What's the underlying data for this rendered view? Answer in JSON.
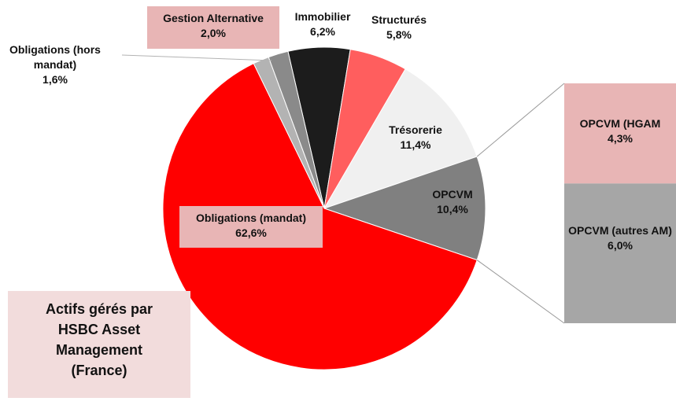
{
  "chart_data": {
    "type": "pie",
    "title": "Actifs gérés par HSBC Asset Management (France)",
    "categories": [
      "Immobilier",
      "Structurés",
      "Trésorerie",
      "OPCVM",
      "Obligations (mandat)",
      "Obligations (hors mandat)",
      "Gestion Alternative"
    ],
    "values": [
      6.2,
      5.8,
      11.4,
      10.4,
      62.6,
      1.6,
      2.0
    ],
    "value_labels": [
      "6,2%",
      "5,8%",
      "11,4%",
      "10,4%",
      "62,6%",
      "1,6%",
      "2,0%"
    ],
    "colors": [
      "#1c1c1c",
      "#ff5e5e",
      "#f0f0f0",
      "#808080",
      "#ff0000",
      "#b3b3b3",
      "#8a8a8a"
    ],
    "breakdown": {
      "categories": [
        "OPCVM (HGAM",
        "OPCVM (autres AM)"
      ],
      "values": [
        4.3,
        6.0
      ],
      "value_labels": [
        "4,3%",
        "6,0%"
      ],
      "colors": [
        "#e8b5b5",
        "#a6a6a6"
      ]
    }
  }
}
